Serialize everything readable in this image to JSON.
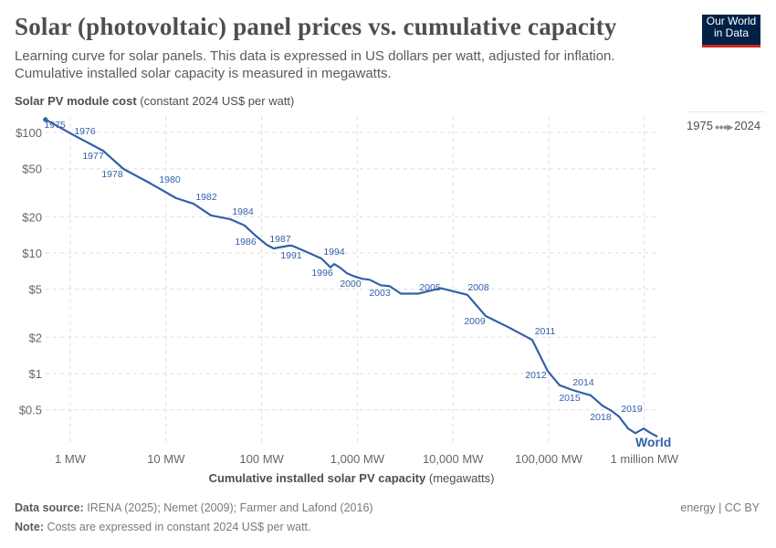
{
  "header": {
    "title": "Solar (photovoltaic) panel prices vs. cumulative capacity",
    "subtitle": "Learning curve for solar panels. This data is expressed in US dollars per watt, adjusted for inflation. Cumulative installed solar capacity is measured in megawatts.",
    "logo": {
      "line1": "Our World",
      "line2": "in Data",
      "bg_color": "#002147",
      "accent_color": "#ce261e"
    }
  },
  "timeline": {
    "start": "1975",
    "end": "2024"
  },
  "footer": {
    "source_label": "Data source:",
    "source_text": "IRENA (2025); Nemet (2009); Farmer and Lafond (2016)",
    "note_label": "Note:",
    "note_text": "Costs are expressed in constant 2024 US$ per watt.",
    "license": "energy | CC BY"
  },
  "chart_data": {
    "type": "line",
    "title": "Solar (photovoltaic) panel prices vs. cumulative capacity",
    "ylabel_bold": "Solar PV module cost",
    "ylabel_rest": "(constant 2024 US$ per watt)",
    "xlabel_bold": "Cumulative installed solar PV capacity",
    "xlabel_rest": "(megawatts)",
    "x_scale": "log",
    "y_scale": "log",
    "xlim": [
      0.5,
      1400000
    ],
    "ylim": [
      0.27,
      135
    ],
    "grid": true,
    "x_ticks": [
      {
        "value": 1,
        "label": "1 MW"
      },
      {
        "value": 10,
        "label": "10 MW"
      },
      {
        "value": 100,
        "label": "100 MW"
      },
      {
        "value": 1000,
        "label": "1,000 MW"
      },
      {
        "value": 10000,
        "label": "10,000 MW"
      },
      {
        "value": 100000,
        "label": "100,000 MW"
      },
      {
        "value": 1000000,
        "label": "1 million MW"
      }
    ],
    "y_ticks": [
      {
        "value": 100,
        "label": "$100"
      },
      {
        "value": 50,
        "label": "$50"
      },
      {
        "value": 20,
        "label": "$20"
      },
      {
        "value": 10,
        "label": "$10"
      },
      {
        "value": 5,
        "label": "$5"
      },
      {
        "value": 2,
        "label": "$2"
      },
      {
        "value": 1,
        "label": "$1"
      },
      {
        "value": 0.5,
        "label": "$0.5"
      }
    ],
    "series": [
      {
        "name": "World",
        "color": "#3360a9",
        "points": [
          {
            "year": 1975,
            "x": 0.55,
            "y": 128
          },
          {
            "year": 1976,
            "x": 1.14,
            "y": 93
          },
          {
            "year": 1977,
            "x": 2.2,
            "y": 70.5
          },
          {
            "year": 1978,
            "x": 3.6,
            "y": 49.8
          },
          {
            "year": 1979,
            "x": 6.9,
            "y": 37.7
          },
          {
            "year": 1980,
            "x": 12.8,
            "y": 28.5
          },
          {
            "year": 1981,
            "x": 19.4,
            "y": 25.6
          },
          {
            "year": 1982,
            "x": 29.5,
            "y": 20.5
          },
          {
            "year": 1983,
            "x": 46.7,
            "y": 19.1
          },
          {
            "year": 1984,
            "x": 66.5,
            "y": 16.9
          },
          {
            "year": 1985,
            "x": 86.5,
            "y": 13.9
          },
          {
            "year": 1986,
            "x": 113,
            "y": 11.7
          },
          {
            "year": 1987,
            "x": 134,
            "y": 10.9
          },
          {
            "year": 1988,
            "x": 150,
            "y": 11.1
          },
          {
            "year": 1989,
            "x": 171,
            "y": 11.3
          },
          {
            "year": 1990,
            "x": 191,
            "y": 11.5
          },
          {
            "year": 1991,
            "x": 208,
            "y": 11.5
          },
          {
            "year": 1992,
            "x": 296,
            "y": 10.2
          },
          {
            "year": 1993,
            "x": 421,
            "y": 9.0
          },
          {
            "year": 1994,
            "x": 524,
            "y": 7.6
          },
          {
            "year": 1995,
            "x": 572,
            "y": 8.1
          },
          {
            "year": 1996,
            "x": 653,
            "y": 7.6
          },
          {
            "year": 1997,
            "x": 779,
            "y": 6.8
          },
          {
            "year": 1998,
            "x": 929,
            "y": 6.4
          },
          {
            "year": 1999,
            "x": 1130,
            "y": 6.1
          },
          {
            "year": 2000,
            "x": 1349,
            "y": 6.0
          },
          {
            "year": 2001,
            "x": 1755,
            "y": 5.4
          },
          {
            "year": 2002,
            "x": 2186,
            "y": 5.3
          },
          {
            "year": 2003,
            "x": 2847,
            "y": 4.6
          },
          {
            "year": 2004,
            "x": 4318,
            "y": 4.6
          },
          {
            "year": 2005,
            "x": 5383,
            "y": 4.8
          },
          {
            "year": 2006,
            "x": 7482,
            "y": 5.1
          },
          {
            "year": 2007,
            "x": 10180,
            "y": 4.8
          },
          {
            "year": 2008,
            "x": 14160,
            "y": 4.5
          },
          {
            "year": 2009,
            "x": 21980,
            "y": 3.0
          },
          {
            "year": 2010,
            "x": 38900,
            "y": 2.4
          },
          {
            "year": 2011,
            "x": 67300,
            "y": 1.9
          },
          {
            "year": 2012,
            "x": 97700,
            "y": 1.05
          },
          {
            "year": 2013,
            "x": 130000,
            "y": 0.8
          },
          {
            "year": 2014,
            "x": 177000,
            "y": 0.73
          },
          {
            "year": 2015,
            "x": 225000,
            "y": 0.69
          },
          {
            "year": 2016,
            "x": 275000,
            "y": 0.66
          },
          {
            "year": 2017,
            "x": 366000,
            "y": 0.54
          },
          {
            "year": 2018,
            "x": 455000,
            "y": 0.49
          },
          {
            "year": 2019,
            "x": 543000,
            "y": 0.44
          },
          {
            "year": 2020,
            "x": 676000,
            "y": 0.35
          },
          {
            "year": 2021,
            "x": 806000,
            "y": 0.32
          },
          {
            "year": 2022,
            "x": 982000,
            "y": 0.35
          },
          {
            "year": 2023,
            "x": 1172000,
            "y": 0.32
          },
          {
            "year": 2024,
            "x": 1365000,
            "y": 0.3
          }
        ],
        "labeled_years": [
          1975,
          1976,
          1977,
          1978,
          1980,
          1982,
          1984,
          1986,
          1987,
          1991,
          1994,
          1996,
          2000,
          2003,
          2005,
          2008,
          2009,
          2011,
          2012,
          2014,
          2015,
          2018,
          2019
        ]
      }
    ]
  }
}
